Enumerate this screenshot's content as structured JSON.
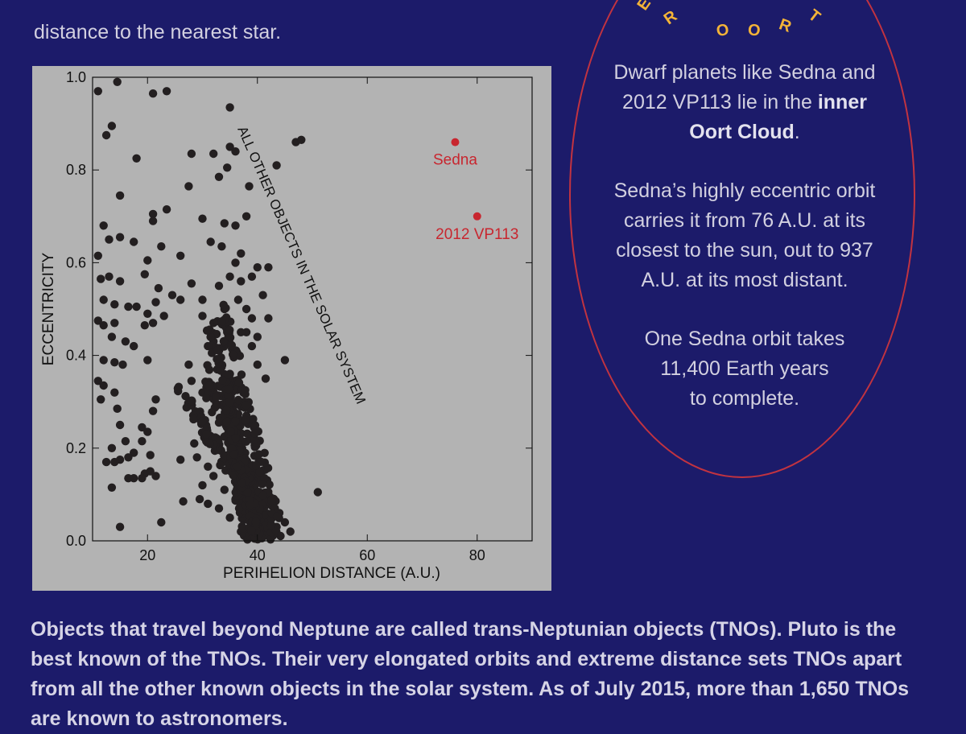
{
  "intro": {
    "line1": "distance to the nearest star."
  },
  "arc_title": {
    "letters": [
      "E",
      "R",
      "O",
      "O",
      "R",
      "T"
    ]
  },
  "sidebar": {
    "p1_a": "Dwarf planets like Sedna and",
    "p1_b": "2012 VP113 lie in the",
    "p1_bold_1": "inner",
    "p1_bold_2": "Oort Cloud",
    "p1_end": ".",
    "p2_lines": [
      "Sedna’s highly eccentric orbit",
      "carries it from 76 A.U. at its",
      "closest to the sun, out to 937",
      "A.U. at its most distant."
    ],
    "p3_lines": [
      "One Sedna orbit takes",
      "11,400 Earth years",
      "to complete."
    ]
  },
  "bottom": {
    "text": "Objects that travel beyond Neptune are called trans-Neptunian objects (TNOs). Pluto is the best known of the TNOs. Their very elongated orbits and extreme distance sets TNOs apart from all the other known objects in the solar system. As of July 2015, more than 1,650 TNOs are known to astronomers."
  },
  "colors": {
    "background": "#1c1b6a",
    "chart_panel": "#b3b3b3",
    "points": "#231f20",
    "highlight": "#c8262f",
    "oval_border": "#c23340",
    "arc_letters": "#f3b338"
  },
  "chart_data": {
    "type": "scatter",
    "xlabel": "PERIHELION DISTANCE (A.U.)",
    "ylabel": "ECCENTRICITY",
    "xlim": [
      10,
      90
    ],
    "ylim": [
      0,
      1.0
    ],
    "xticks": [
      20,
      40,
      60,
      80
    ],
    "xtick_labels": [
      "20",
      "40",
      "60",
      "80"
    ],
    "yticks": [
      0,
      0.2,
      0.4,
      0.6,
      0.8,
      1.0
    ],
    "ytick_labels": [
      "0.0",
      "0.2",
      "0.4",
      "0.6",
      "0.8",
      "1.0"
    ],
    "grid": false,
    "annotation": "ALL OTHER OBJECTS IN THE SOLAR SYSTEM",
    "highlighted": [
      {
        "name": "Sedna",
        "x": 76,
        "y": 0.86
      },
      {
        "name": "2012 VP113",
        "x": 80,
        "y": 0.7
      }
    ],
    "points": [
      [
        14.5,
        0.99
      ],
      [
        11,
        0.97
      ],
      [
        21,
        0.965
      ],
      [
        23.5,
        0.97
      ],
      [
        13.5,
        0.895
      ],
      [
        12.5,
        0.875
      ],
      [
        35,
        0.935
      ],
      [
        18,
        0.825
      ],
      [
        28,
        0.835
      ],
      [
        32,
        0.835
      ],
      [
        35,
        0.85
      ],
      [
        36,
        0.84
      ],
      [
        47,
        0.86
      ],
      [
        48,
        0.865
      ],
      [
        43.5,
        0.81
      ],
      [
        15,
        0.745
      ],
      [
        27.5,
        0.765
      ],
      [
        33,
        0.785
      ],
      [
        34.5,
        0.805
      ],
      [
        38.5,
        0.765
      ],
      [
        21,
        0.705
      ],
      [
        23.5,
        0.715
      ],
      [
        21,
        0.69
      ],
      [
        12,
        0.68
      ],
      [
        30,
        0.695
      ],
      [
        34,
        0.685
      ],
      [
        36,
        0.68
      ],
      [
        38,
        0.7
      ],
      [
        15,
        0.655
      ],
      [
        17.5,
        0.645
      ],
      [
        13,
        0.65
      ],
      [
        22.5,
        0.635
      ],
      [
        26,
        0.615
      ],
      [
        31.5,
        0.645
      ],
      [
        33.5,
        0.635
      ],
      [
        11,
        0.615
      ],
      [
        20,
        0.605
      ],
      [
        11.5,
        0.565
      ],
      [
        13,
        0.57
      ],
      [
        15,
        0.56
      ],
      [
        19.5,
        0.575
      ],
      [
        22,
        0.545
      ],
      [
        24.5,
        0.53
      ],
      [
        28,
        0.555
      ],
      [
        12,
        0.52
      ],
      [
        14,
        0.51
      ],
      [
        16.5,
        0.505
      ],
      [
        18,
        0.505
      ],
      [
        20,
        0.49
      ],
      [
        21.5,
        0.515
      ],
      [
        26,
        0.52
      ],
      [
        30,
        0.52
      ],
      [
        11,
        0.475
      ],
      [
        12,
        0.465
      ],
      [
        14,
        0.47
      ],
      [
        19.5,
        0.465
      ],
      [
        21,
        0.47
      ],
      [
        23,
        0.485
      ],
      [
        30,
        0.485
      ],
      [
        32,
        0.47
      ],
      [
        13.5,
        0.44
      ],
      [
        16,
        0.43
      ],
      [
        17.5,
        0.42
      ],
      [
        12,
        0.39
      ],
      [
        14,
        0.385
      ],
      [
        15.5,
        0.38
      ],
      [
        20,
        0.39
      ],
      [
        11,
        0.345
      ],
      [
        12,
        0.335
      ],
      [
        14,
        0.32
      ],
      [
        11.5,
        0.305
      ],
      [
        14.5,
        0.285
      ],
      [
        21,
        0.28
      ],
      [
        21.5,
        0.305
      ],
      [
        15,
        0.25
      ],
      [
        16,
        0.215
      ],
      [
        19,
        0.245
      ],
      [
        20,
        0.235
      ],
      [
        19,
        0.215
      ],
      [
        17.5,
        0.19
      ],
      [
        13.5,
        0.2
      ],
      [
        12.5,
        0.17
      ],
      [
        14,
        0.17
      ],
      [
        15,
        0.175
      ],
      [
        16.5,
        0.18
      ],
      [
        20.5,
        0.185
      ],
      [
        21.5,
        0.14
      ],
      [
        19.5,
        0.145
      ],
      [
        20.5,
        0.15
      ],
      [
        16.5,
        0.135
      ],
      [
        17.5,
        0.135
      ],
      [
        19,
        0.135
      ],
      [
        13.5,
        0.115
      ],
      [
        15,
        0.03
      ],
      [
        22.5,
        0.04
      ],
      [
        26.5,
        0.085
      ],
      [
        26,
        0.175
      ],
      [
        28.5,
        0.21
      ],
      [
        27.5,
        0.38
      ],
      [
        30,
        0.32
      ],
      [
        28,
        0.345
      ],
      [
        33,
        0.255
      ],
      [
        34,
        0.225
      ],
      [
        35,
        0.36
      ],
      [
        36,
        0.33
      ],
      [
        37,
        0.29
      ],
      [
        38,
        0.27
      ],
      [
        38,
        0.45
      ],
      [
        39,
        0.42
      ],
      [
        40,
        0.38
      ],
      [
        41.5,
        0.35
      ],
      [
        45,
        0.39
      ],
      [
        42,
        0.48
      ],
      [
        41,
        0.53
      ],
      [
        39,
        0.57
      ],
      [
        40,
        0.59
      ],
      [
        42,
        0.59
      ],
      [
        37,
        0.62
      ],
      [
        36,
        0.6
      ],
      [
        33,
        0.55
      ],
      [
        35,
        0.57
      ],
      [
        37,
        0.56
      ],
      [
        36.5,
        0.52
      ],
      [
        34,
        0.5
      ],
      [
        38,
        0.5
      ],
      [
        32,
        0.43
      ],
      [
        33,
        0.41
      ],
      [
        34.5,
        0.45
      ],
      [
        31,
        0.42
      ],
      [
        37,
        0.45
      ],
      [
        39,
        0.48
      ],
      [
        40,
        0.44
      ],
      [
        43,
        0.09
      ],
      [
        44,
        0.06
      ],
      [
        45,
        0.04
      ],
      [
        46,
        0.02
      ],
      [
        43.5,
        0.03
      ],
      [
        42,
        0.02
      ],
      [
        51,
        0.105
      ],
      [
        29,
        0.18
      ],
      [
        31,
        0.16
      ],
      [
        32,
        0.14
      ],
      [
        30,
        0.12
      ],
      [
        34,
        0.11
      ],
      [
        36,
        0.09
      ],
      [
        38,
        0.06
      ],
      [
        35,
        0.05
      ],
      [
        33,
        0.07
      ],
      [
        31,
        0.08
      ],
      [
        29.5,
        0.09
      ],
      [
        37,
        0.02
      ],
      [
        39,
        0.01
      ],
      [
        41,
        0.015
      ],
      [
        40,
        0.035
      ]
    ],
    "bands": [
      {
        "from": [
          25.8,
          0.33
        ],
        "to": [
          44.0,
          0.005
        ],
        "count": 70,
        "jitter": 0.012
      },
      {
        "from": [
          27.5,
          0.3
        ],
        "to": [
          42.5,
          0.01
        ],
        "count": 70,
        "jitter": 0.014
      },
      {
        "from": [
          31.5,
          0.46
        ],
        "to": [
          42.0,
          0.0
        ],
        "count": 110,
        "jitter": 0.022
      },
      {
        "from": [
          33.5,
          0.5
        ],
        "to": [
          43.5,
          0.03
        ],
        "count": 110,
        "jitter": 0.03
      },
      {
        "from": [
          30.5,
          0.36
        ],
        "to": [
          41.0,
          0.06
        ],
        "count": 80,
        "jitter": 0.03
      },
      {
        "from": [
          34.0,
          0.35
        ],
        "to": [
          38.0,
          0.0
        ],
        "count": 110,
        "jitter": 0.025
      },
      {
        "from": [
          35.0,
          0.26
        ],
        "to": [
          40.0,
          0.01
        ],
        "count": 120,
        "jitter": 0.02
      }
    ]
  }
}
